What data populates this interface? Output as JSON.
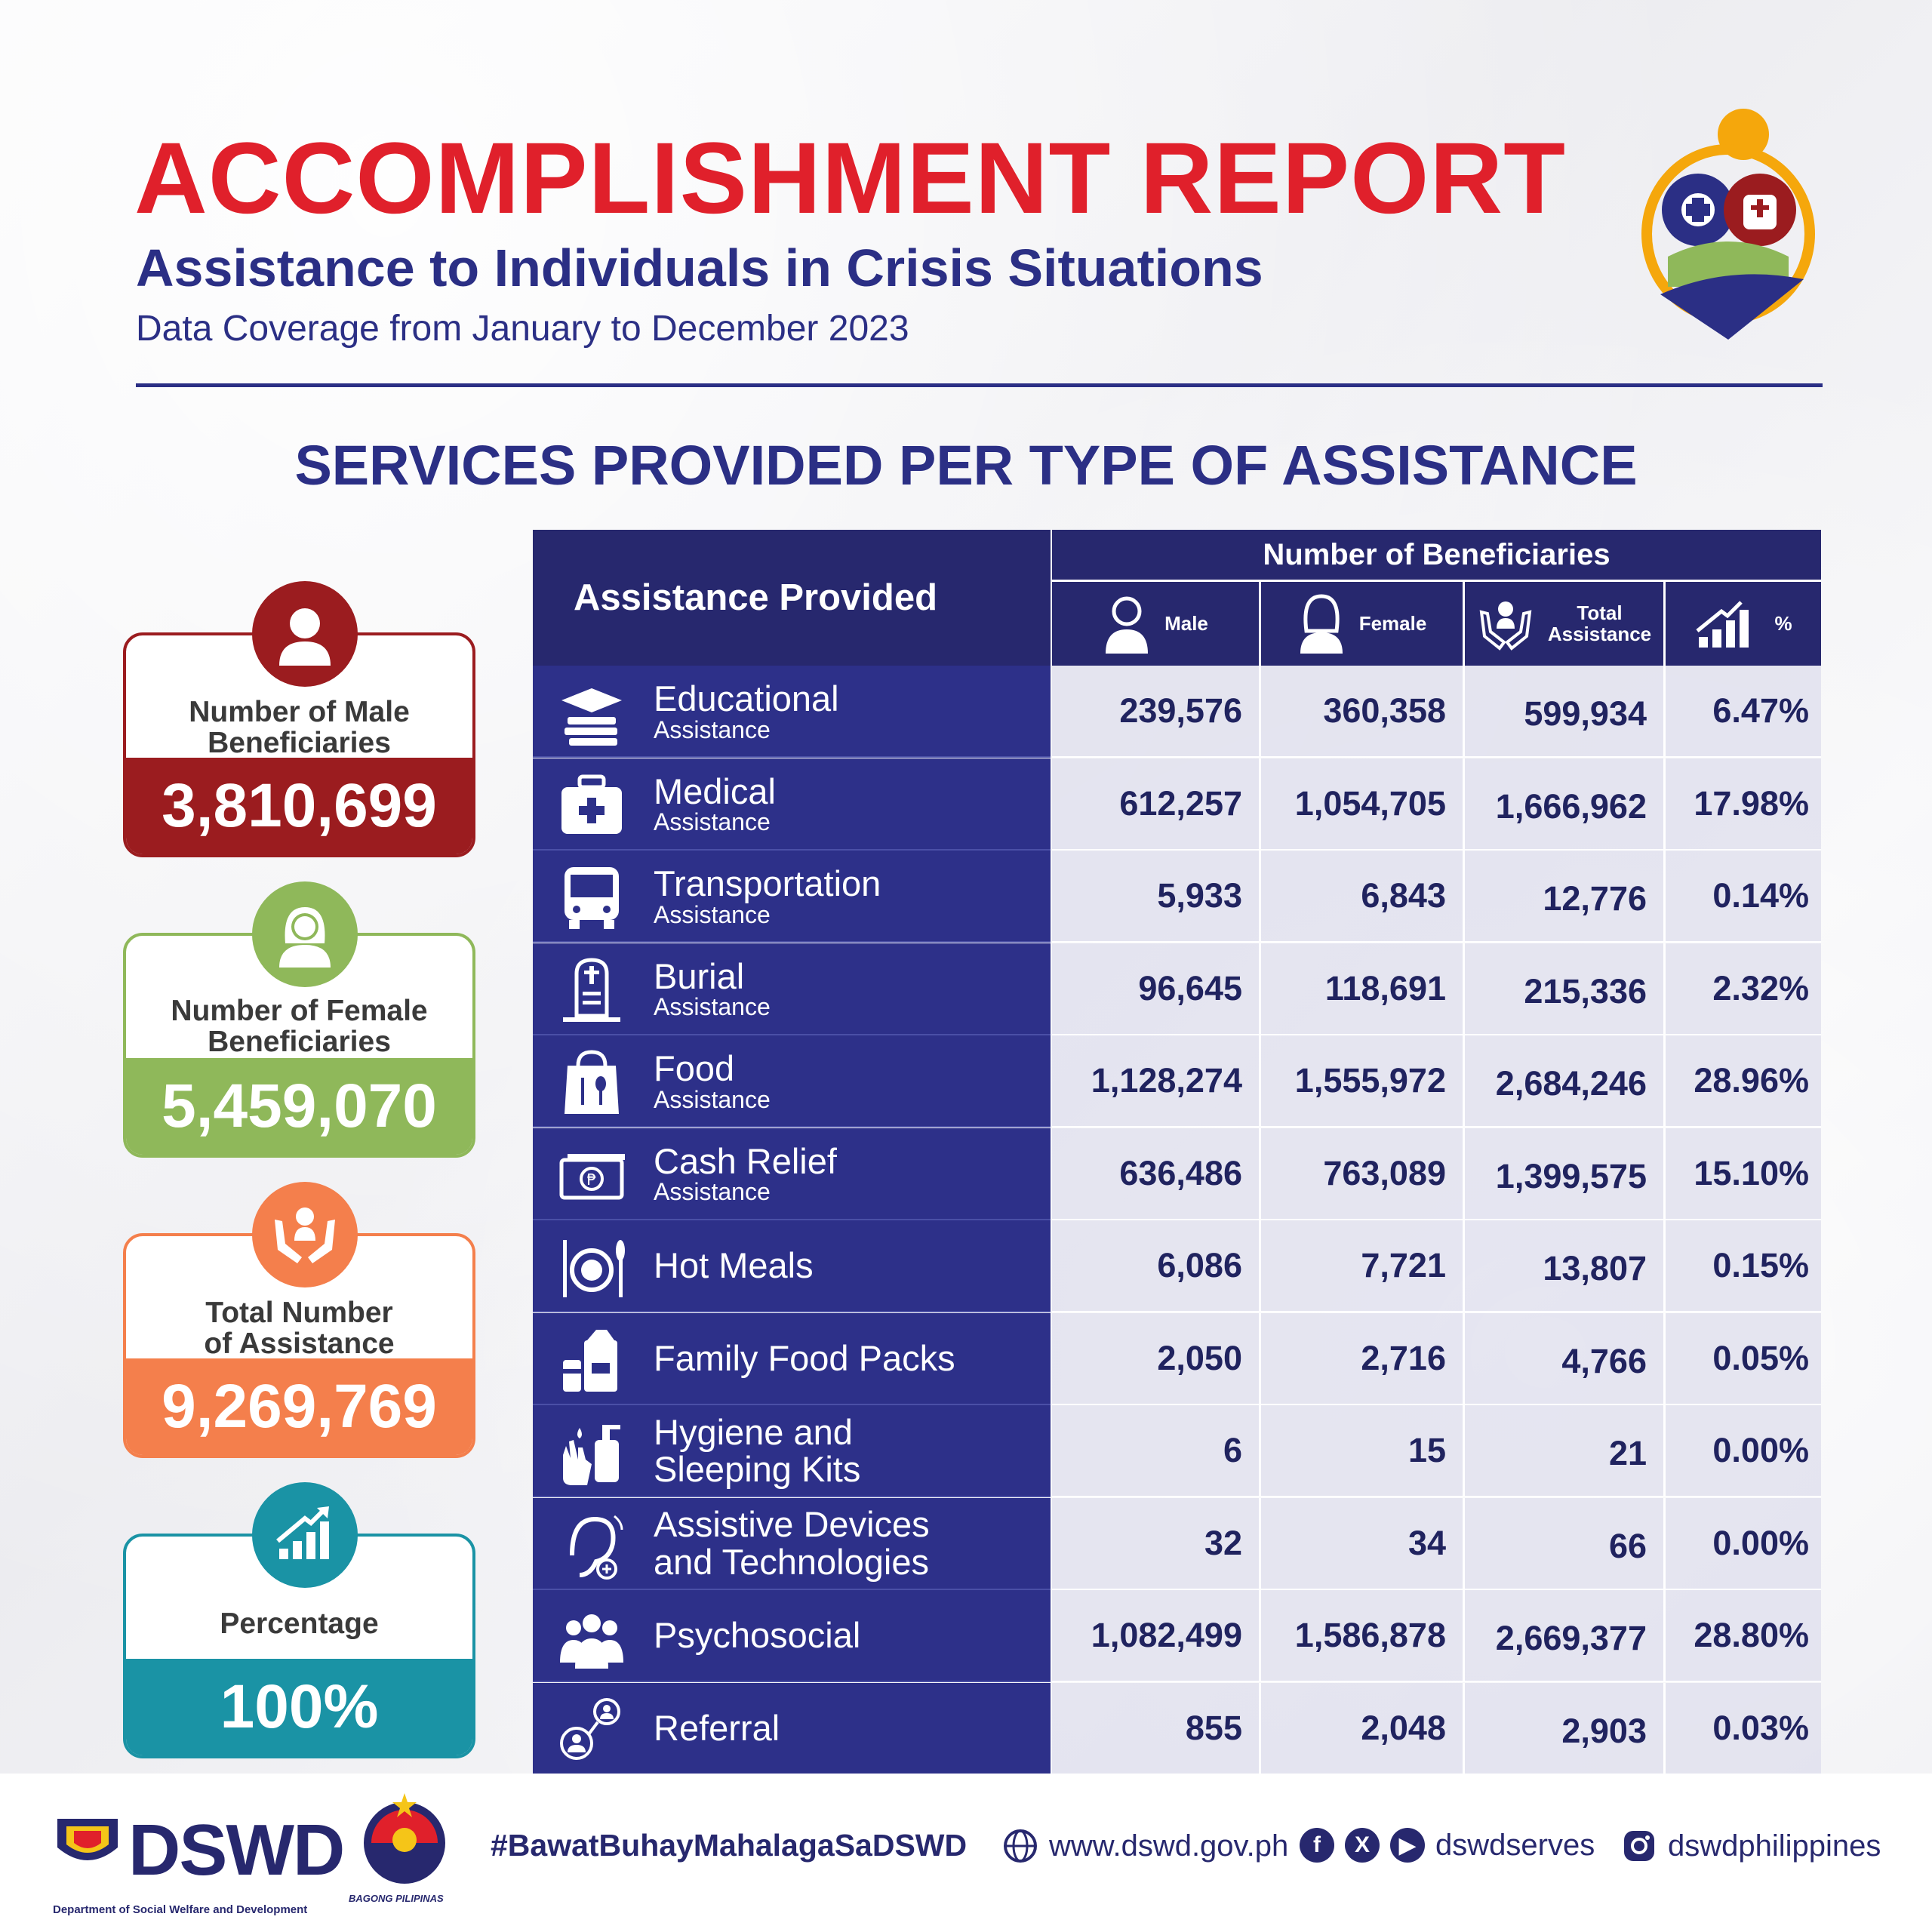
{
  "header": {
    "title": "ACCOMPLISHMENT REPORT",
    "subtitle": "Assistance to Individuals in Crisis Situations",
    "coverage": "Data Coverage from January to December 2023",
    "section_title": "SERVICES PROVIDED PER TYPE OF ASSISTANCE"
  },
  "summary": {
    "male": {
      "label_line1": "Number of Male",
      "label_line2": "Beneficiaries",
      "value": "3,810,699",
      "color": "#9b1c1f"
    },
    "female": {
      "label_line1": "Number of Female",
      "label_line2": "Beneficiaries",
      "value": "5,459,070",
      "color": "#8fb85a"
    },
    "total": {
      "label_line1": "Total Number",
      "label_line2": "of Assistance",
      "value": "9,269,769",
      "color": "#f47f4c"
    },
    "percentage": {
      "label": "Percentage",
      "value": "100%",
      "color": "#1a93a5"
    }
  },
  "table": {
    "col_assistance": "Assistance Provided",
    "col_group": "Number of Beneficiaries",
    "col_male": "Male",
    "col_female": "Female",
    "col_total_line1": "Total",
    "col_total_line2": "Assistance",
    "col_pct": "%",
    "rows": [
      {
        "main": "Educational",
        "sub": "Assistance",
        "icon": "graduation-cap-icon",
        "male": "239,576",
        "female": "360,358",
        "total": "599,934",
        "pct": "6.47%"
      },
      {
        "main": "Medical",
        "sub": "Assistance",
        "icon": "medical-kit-icon",
        "male": "612,257",
        "female": "1,054,705",
        "total": "1,666,962",
        "pct": "17.98%"
      },
      {
        "main": "Transportation",
        "sub": "Assistance",
        "icon": "bus-icon",
        "male": "5,933",
        "female": "6,843",
        "total": "12,776",
        "pct": "0.14%"
      },
      {
        "main": "Burial",
        "sub": "Assistance",
        "icon": "tombstone-icon",
        "male": "96,645",
        "female": "118,691",
        "total": "215,336",
        "pct": "2.32%"
      },
      {
        "main": "Food",
        "sub": "Assistance",
        "icon": "food-bag-icon",
        "male": "1,128,274",
        "female": "1,555,972",
        "total": "2,684,246",
        "pct": "28.96%"
      },
      {
        "main": "Cash Relief",
        "sub": "Assistance",
        "icon": "cash-icon",
        "male": "636,486",
        "female": "763,089",
        "total": "1,399,575",
        "pct": "15.10%"
      },
      {
        "main": "Hot Meals",
        "sub": "",
        "icon": "plate-cutlery-icon",
        "male": "6,086",
        "female": "7,721",
        "total": "13,807",
        "pct": "0.15%"
      },
      {
        "main": "Family Food Packs",
        "sub": "",
        "icon": "food-pack-icon",
        "male": "2,050",
        "female": "2,716",
        "total": "4,766",
        "pct": "0.05%"
      },
      {
        "main": "Hygiene and",
        "sub": "Sleeping Kits",
        "icon": "hygiene-icon",
        "male": "6",
        "female": "15",
        "total": "21",
        "pct": "0.00%"
      },
      {
        "main": "Assistive Devices",
        "sub": "and Technologies",
        "icon": "hearing-aid-icon",
        "male": "32",
        "female": "34",
        "total": "66",
        "pct": "0.00%"
      },
      {
        "main": "Psychosocial",
        "sub": "",
        "icon": "group-icon",
        "male": "1,082,499",
        "female": "1,586,878",
        "total": "2,669,377",
        "pct": "28.80%"
      },
      {
        "main": "Referral",
        "sub": "",
        "icon": "referral-icon",
        "male": "855",
        "female": "2,048",
        "total": "2,903",
        "pct": "0.03%"
      }
    ]
  },
  "footer": {
    "logo_text": "DSWD",
    "logo_sub": "Department of Social Welfare and Development",
    "bagong": "BAGONG PILIPINAS",
    "hashtag": "#BawatBuhayMahalagaSaDSWD",
    "website": "www.dswd.gov.ph",
    "social1": "dswdserves",
    "social2": "dswdphilippines"
  }
}
